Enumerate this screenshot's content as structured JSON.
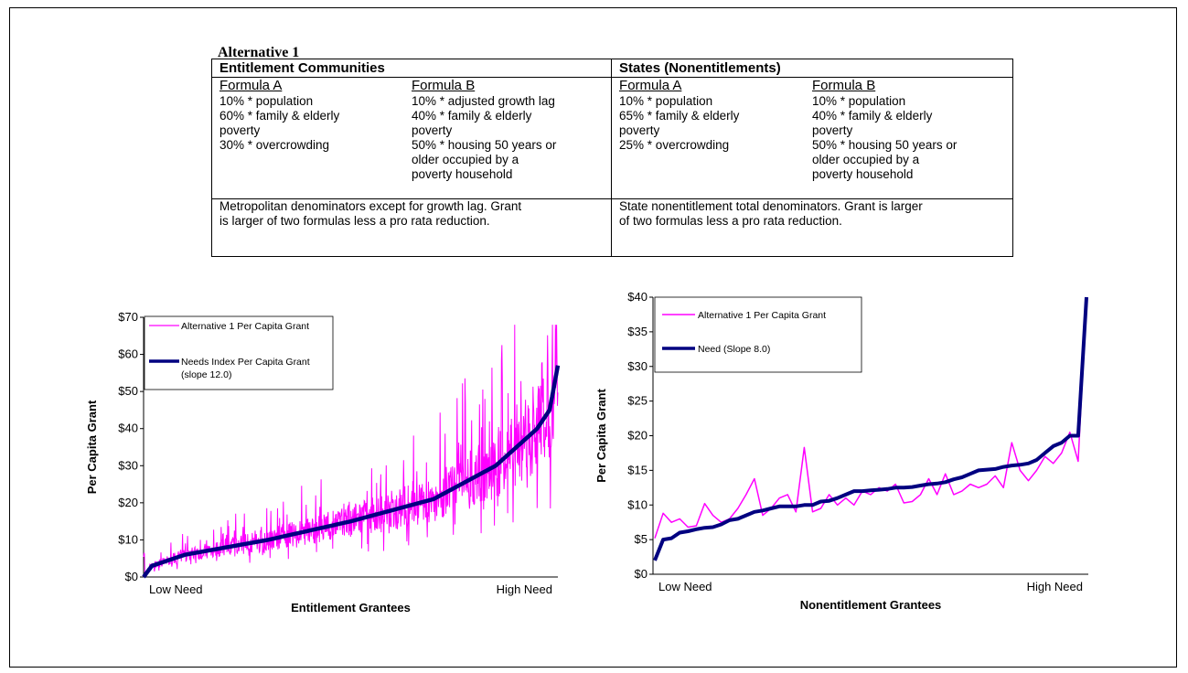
{
  "heading": "Alternative 1",
  "table": {
    "entitlement": {
      "title": "Entitlement Communities",
      "formula_a": {
        "name": "Formula A",
        "lines": [
          "10% * population",
          "60% * family & elderly",
          "poverty",
          "30% * overcrowding"
        ]
      },
      "formula_b": {
        "name": "Formula B",
        "lines": [
          "10% * adjusted growth lag",
          "40% * family & elderly",
          "poverty",
          "50% * housing 50 years or",
          "older occupied by a",
          "poverty household"
        ]
      },
      "note": [
        "Metropolitan denominators except for growth lag. Grant",
        "is larger of two formulas less a pro rata reduction."
      ]
    },
    "states": {
      "title": "States (Nonentitlements)",
      "formula_a": {
        "name": "Formula A",
        "lines": [
          "10% * population",
          "65% * family & elderly",
          "poverty",
          "25% * overcrowding"
        ]
      },
      "formula_b": {
        "name": "Formula B",
        "lines": [
          "10% * population",
          "40% * family & elderly",
          "poverty",
          "50% * housing 50 years or",
          "older occupied by a",
          "poverty household"
        ]
      },
      "note": [
        "State nonentitlement total denominators. Grant is larger",
        "of two formulas less a pro rata reduction."
      ]
    }
  },
  "colors": {
    "alt": "#ff00ff",
    "need": "#000080"
  },
  "chart_data": [
    {
      "type": "line",
      "xlabel": "Entitlement Grantees",
      "ylabel": "Per Capita Grant",
      "x_tick_labels": [
        "Low Need",
        "High Need"
      ],
      "y_ticks": [
        "$0",
        "$10",
        "$20",
        "$30",
        "$40",
        "$50",
        "$60",
        "$70"
      ],
      "ylim": [
        0,
        70
      ],
      "n_points": 1000,
      "legend_position": "top-left",
      "series": [
        {
          "name": "Alternative 1 Per Capita Grant",
          "note": "noisy series scattered around need index",
          "values_summary": {
            "min": 0,
            "max": 68
          }
        },
        {
          "name": "Needs Index Per Capita Grant (slope 12.0)",
          "legend_lines": [
            "Needs Index Per Capita Grant",
            "(slope 12.0)"
          ],
          "key_values": [
            [
              0,
              0
            ],
            [
              0.02,
              3
            ],
            [
              0.1,
              6
            ],
            [
              0.3,
              10
            ],
            [
              0.5,
              15
            ],
            [
              0.7,
              21
            ],
            [
              0.85,
              30
            ],
            [
              0.95,
              40
            ],
            [
              0.98,
              45
            ],
            [
              1.0,
              57
            ]
          ]
        }
      ]
    },
    {
      "type": "line",
      "xlabel": "Nonentitlement Grantees",
      "ylabel": "Per Capita Grant",
      "x_tick_labels": [
        "Low Need",
        "High Need"
      ],
      "y_ticks": [
        "$0",
        "$5",
        "$10",
        "$15",
        "$20",
        "$25",
        "$30",
        "$35",
        "$40"
      ],
      "ylim": [
        0,
        40
      ],
      "legend_position": "top-left",
      "series": [
        {
          "name": "Alternative 1 Per Capita Grant",
          "values": [
            5.2,
            8.8,
            7.5,
            8,
            6.8,
            7,
            10.2,
            8.5,
            7.5,
            8,
            9.5,
            11.5,
            13.8,
            8.5,
            9.5,
            11,
            11.5,
            9,
            18.3,
            9,
            9.5,
            11.5,
            10,
            11,
            10,
            12,
            11.5,
            12.5,
            12,
            13,
            10.3,
            10.5,
            11.5,
            13.8,
            11.5,
            14.5,
            11.5,
            12,
            13,
            12.5,
            13,
            14.2,
            12.5,
            19,
            15,
            13.5,
            15,
            17,
            16,
            17.5,
            20.5,
            16.3,
            40
          ]
        },
        {
          "name": "Need (Slope 8.0)",
          "values": [
            2,
            5,
            5.2,
            6,
            6.2,
            6.5,
            6.7,
            6.8,
            7.2,
            7.8,
            8,
            8.5,
            9,
            9.2,
            9.5,
            9.8,
            9.8,
            9.8,
            10,
            10,
            10.5,
            10.6,
            11,
            11.5,
            12,
            12,
            12.1,
            12.2,
            12.3,
            12.5,
            12.5,
            12.6,
            12.8,
            13,
            13.1,
            13.3,
            13.7,
            14,
            14.5,
            15,
            15.1,
            15.2,
            15.5,
            15.7,
            15.8,
            16,
            16.5,
            17.5,
            18.5,
            19,
            20,
            20,
            40
          ]
        }
      ]
    }
  ]
}
